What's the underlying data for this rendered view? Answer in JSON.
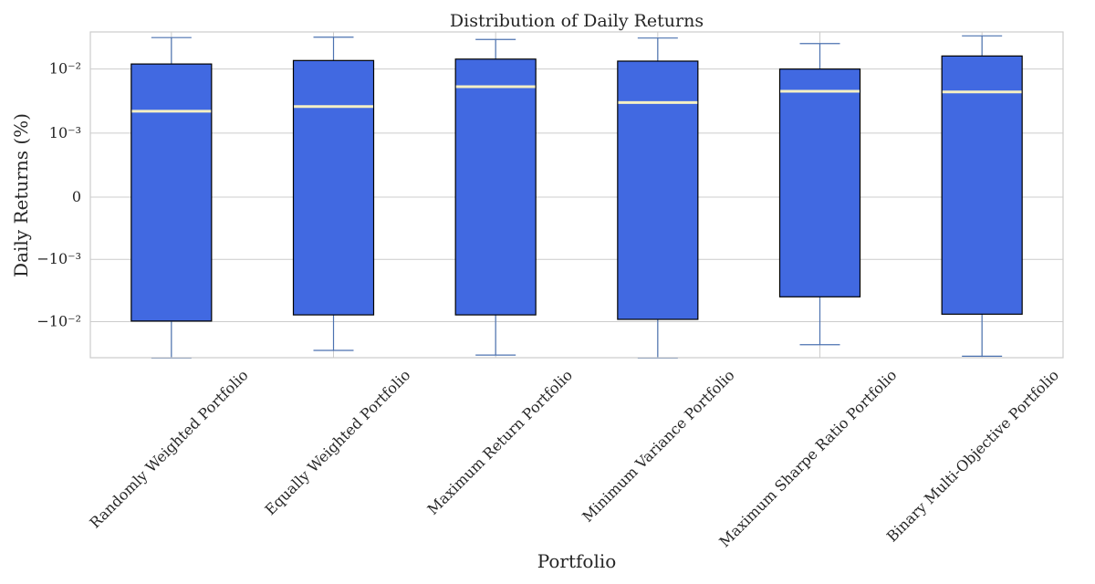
{
  "chart_data": {
    "type": "box",
    "title": "Distribution of Daily Returns",
    "xlabel": "Portfolio",
    "ylabel": "Daily Returns (%)",
    "yscale": "symlog",
    "linthresh": 0.001,
    "ylim": [
      -0.038,
      0.038
    ],
    "yticks": [
      {
        "value": -0.01,
        "label": "−10⁻²"
      },
      {
        "value": -0.001,
        "label": "−10⁻³"
      },
      {
        "value": 0,
        "label": "0"
      },
      {
        "value": 0.001,
        "label": "10⁻³"
      },
      {
        "value": 0.01,
        "label": "10⁻²"
      }
    ],
    "grid": true,
    "colors": {
      "box": "#4169e1",
      "median": "#f5f0c4",
      "whisker": "#4c72b0",
      "edge": "#000000",
      "grid": "#cccccc",
      "frame": "#cccccc"
    },
    "categories": [
      "Randomly Weighted Portfolio",
      "Equally Weighted Portfolio",
      "Maximum Return Portfolio",
      "Minimum Variance Portfolio",
      "Maximum Sharpe Ratio Portfolio",
      "Binary Multi-Objective Portfolio"
    ],
    "boxes": [
      {
        "whisker_low": -0.0385,
        "q1": -0.0098,
        "median": 0.0022,
        "q3": 0.012,
        "whisker_high": 0.031
      },
      {
        "whisker_low": -0.029,
        "q1": -0.0078,
        "median": 0.0026,
        "q3": 0.0136,
        "whisker_high": 0.0315
      },
      {
        "whisker_low": -0.0345,
        "q1": -0.0078,
        "median": 0.0053,
        "q3": 0.0143,
        "whisker_high": 0.029
      },
      {
        "whisker_low": -0.0385,
        "q1": -0.0092,
        "median": 0.003,
        "q3": 0.0133,
        "whisker_high": 0.0305
      },
      {
        "whisker_low": -0.0235,
        "q1": -0.004,
        "median": 0.0045,
        "q3": 0.01,
        "whisker_high": 0.025
      },
      {
        "whisker_low": -0.036,
        "q1": -0.0076,
        "median": 0.0044,
        "q3": 0.016,
        "whisker_high": 0.033
      }
    ]
  }
}
